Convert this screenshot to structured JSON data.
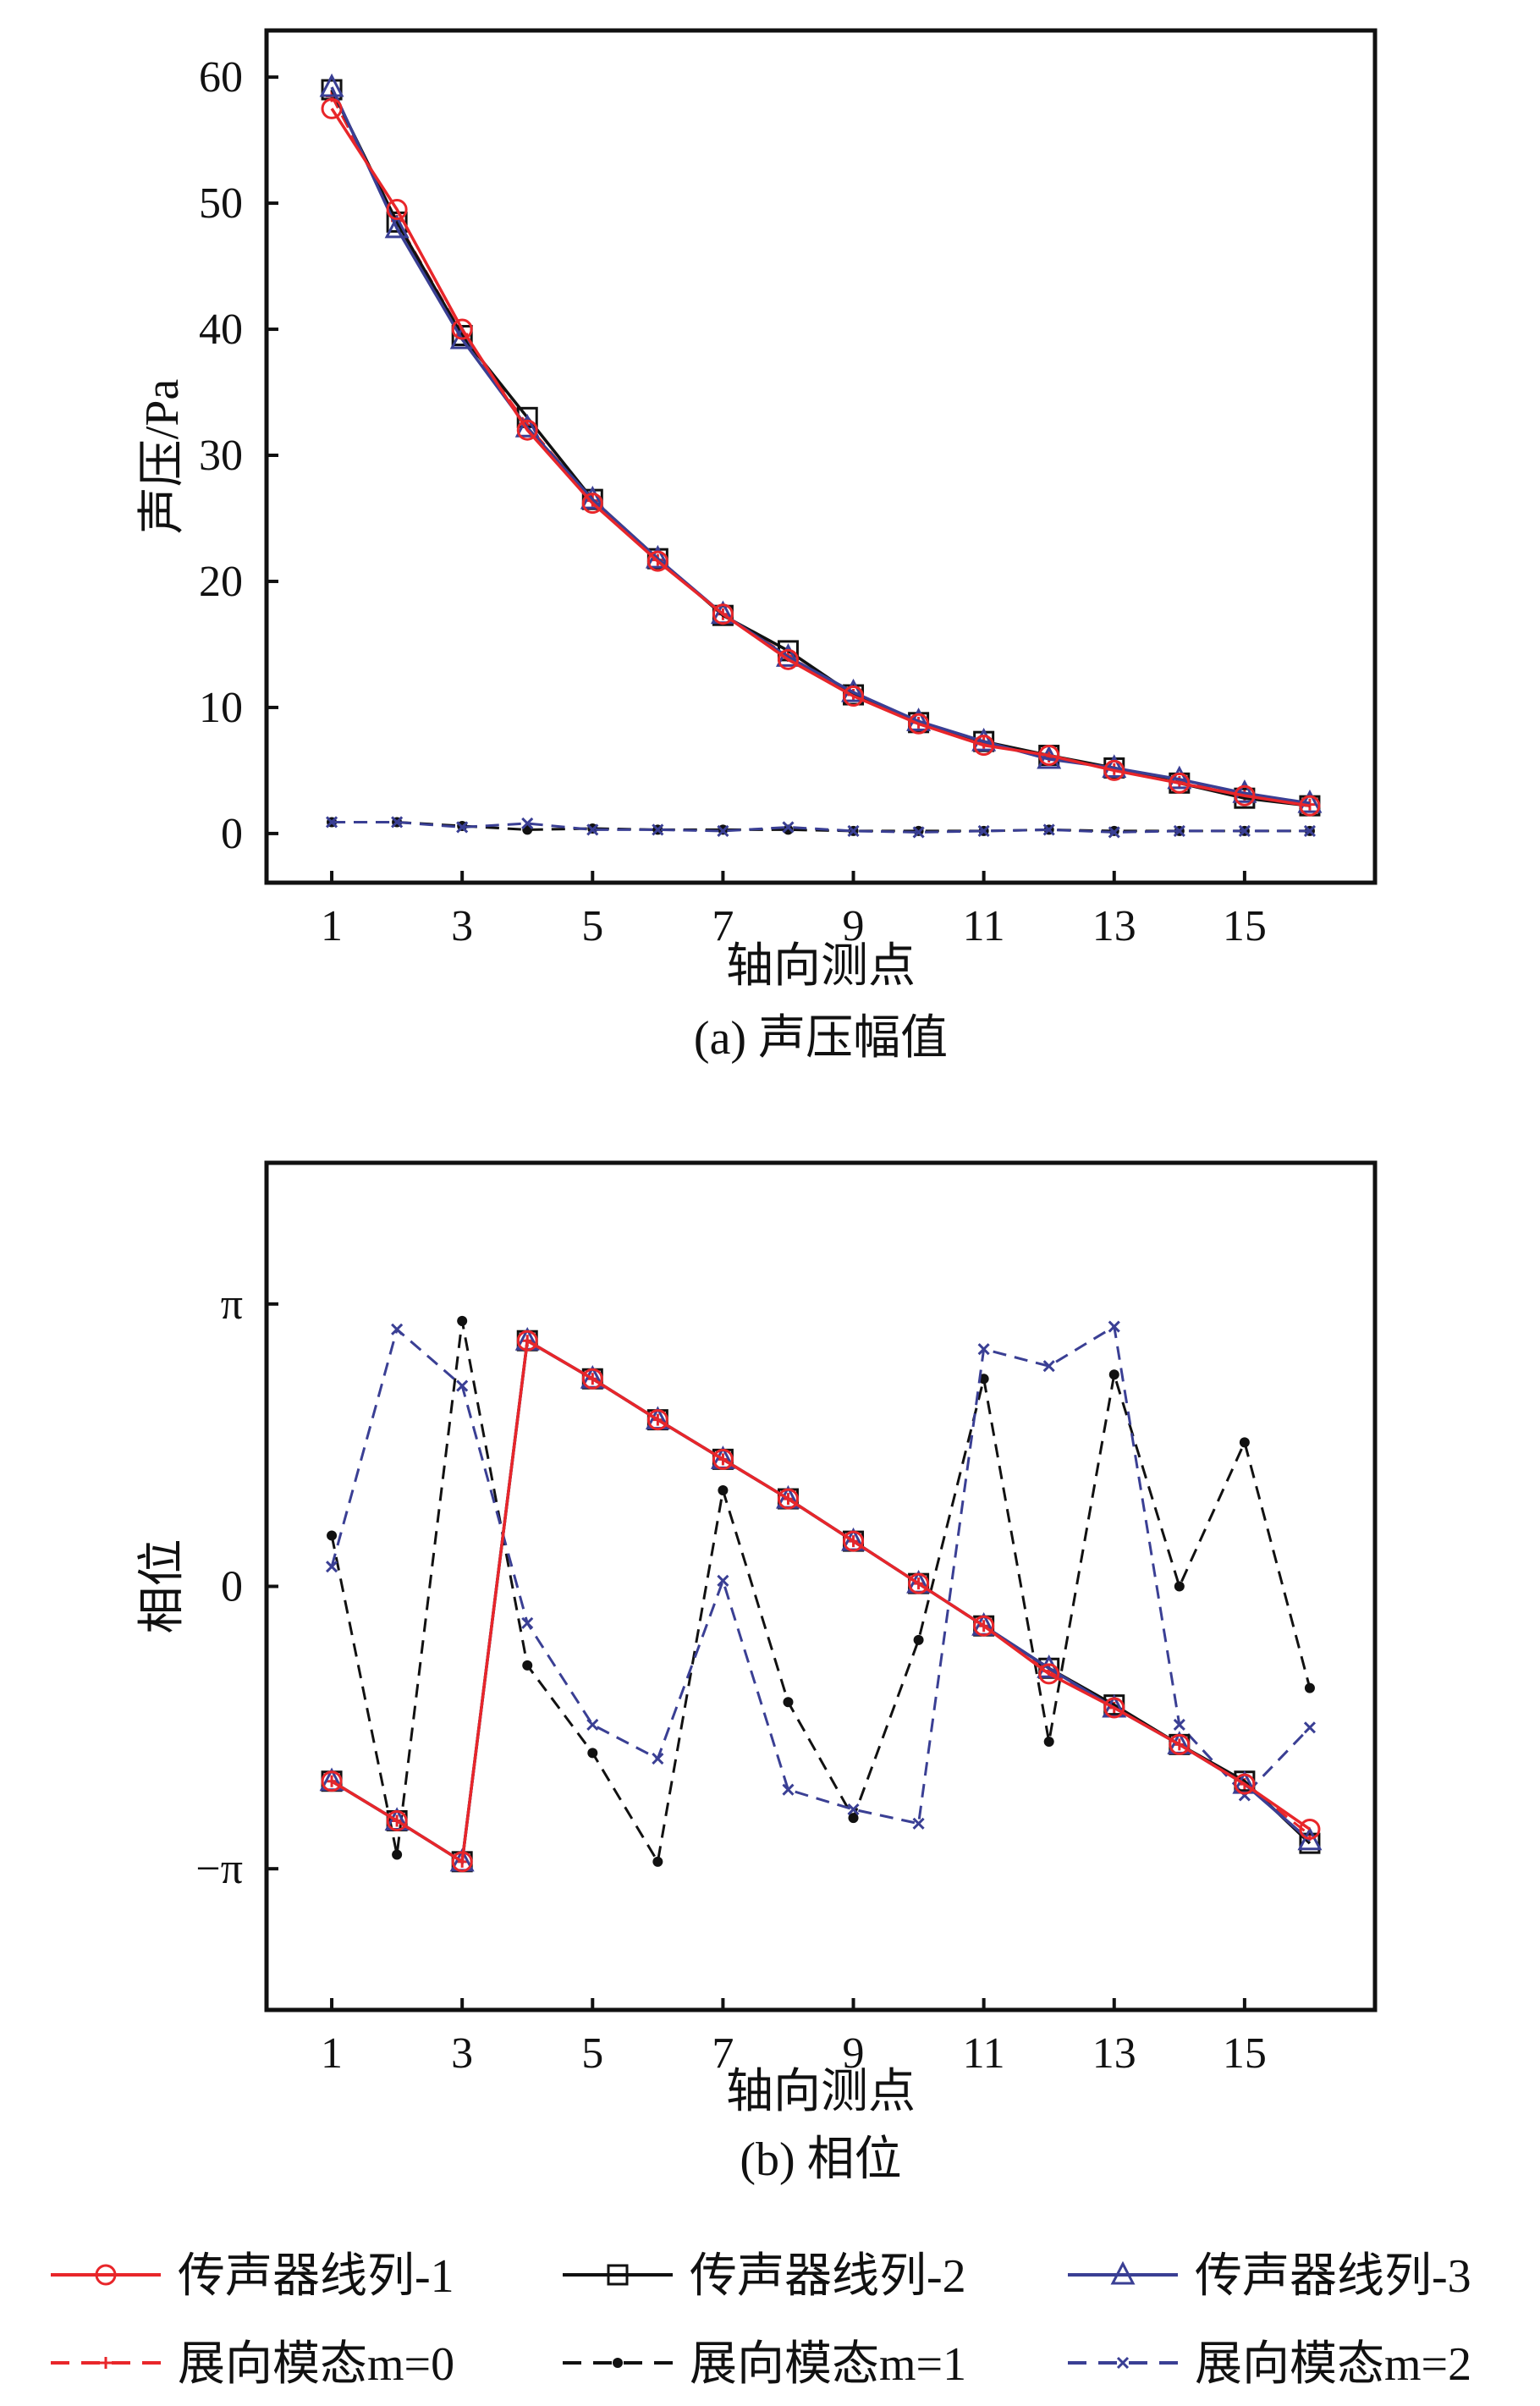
{
  "legend": [
    {
      "label": "传声器线列-1",
      "color": "#e8262a",
      "dash": false,
      "marker": "circle"
    },
    {
      "label": "传声器线列-2",
      "color": "#111111",
      "dash": false,
      "marker": "square"
    },
    {
      "label": "传声器线列-3",
      "color": "#3a3f94",
      "dash": false,
      "marker": "triangle"
    },
    {
      "label": "展向模态m=0",
      "prefix": "展向模态",
      "var": "m",
      "suffix": "=0",
      "color": "#e8262a",
      "dash": true,
      "marker": "plus"
    },
    {
      "label": "展向模态m=1",
      "prefix": "展向模态",
      "var": "m",
      "suffix": "=1",
      "color": "#111111",
      "dash": true,
      "marker": "dot"
    },
    {
      "label": "展向模态m=2",
      "prefix": "展向模态",
      "var": "m",
      "suffix": "=2",
      "color": "#3a3f94",
      "dash": true,
      "marker": "x"
    }
  ],
  "chart_data": [
    {
      "type": "line",
      "caption": "(a) 声压幅值",
      "xlabel": "轴向测点",
      "ylabel": "声压/Pa",
      "xlim": [
        0,
        17
      ],
      "ylim": [
        -3.9,
        63.7
      ],
      "xticks": [
        1,
        3,
        5,
        7,
        9,
        11,
        13,
        15
      ],
      "xtick_labels": [
        "1",
        "3",
        "5",
        "7",
        "9",
        "11",
        "13",
        "15"
      ],
      "yticks": [
        0,
        10,
        20,
        30,
        40,
        50,
        60
      ],
      "ytick_labels": [
        "0",
        "10",
        "20",
        "30",
        "40",
        "50",
        "60"
      ],
      "x": [
        1,
        2,
        3,
        4,
        5,
        6,
        7,
        8,
        9,
        10,
        11,
        12,
        13,
        14,
        15,
        16
      ],
      "series": [
        {
          "name": "传声器线列-1",
          "values": [
            57.5,
            49.5,
            40,
            32,
            26.2,
            21.6,
            17.4,
            13.8,
            10.9,
            8.7,
            7.0,
            6.2,
            5.0,
            4.0,
            3.0,
            2.2
          ]
        },
        {
          "name": "传声器线列-2",
          "values": [
            59,
            48.5,
            39.5,
            33,
            26.5,
            21.8,
            17.3,
            14.5,
            11.0,
            8.8,
            7.3,
            6.2,
            5.2,
            4.0,
            2.8,
            2.2
          ]
        },
        {
          "name": "传声器线列-3",
          "values": [
            59.2,
            48,
            39.2,
            32.2,
            26.5,
            21.8,
            17.4,
            14.0,
            11.2,
            8.9,
            7.3,
            5.9,
            5.2,
            4.3,
            3.2,
            2.4
          ]
        },
        {
          "name": "展向模态m=0",
          "values": [
            58.5,
            48.6,
            39.6,
            32.4,
            26.4,
            21.7,
            17.4,
            14.1,
            11.0,
            8.8,
            7.2,
            6.1,
            5.1,
            4.1,
            3.0,
            2.3
          ]
        },
        {
          "name": "展向模态m=1",
          "values": [
            0.9,
            0.9,
            0.6,
            0.3,
            0.4,
            0.3,
            0.3,
            0.3,
            0.2,
            0.2,
            0.2,
            0.3,
            0.2,
            0.2,
            0.2,
            0.2
          ]
        },
        {
          "name": "展向模态m=2",
          "values": [
            0.9,
            0.9,
            0.5,
            0.8,
            0.3,
            0.3,
            0.2,
            0.5,
            0.2,
            0.1,
            0.2,
            0.3,
            0.1,
            0.2,
            0.2,
            0.2
          ]
        }
      ]
    },
    {
      "type": "line",
      "caption": "(b) 相位",
      "xlabel": "轴向测点",
      "ylabel": "相位",
      "yunit": "π",
      "xlim": [
        0,
        17
      ],
      "ylim": [
        -1.5,
        1.5
      ],
      "xticks": [
        1,
        3,
        5,
        7,
        9,
        11,
        13,
        15
      ],
      "xtick_labels": [
        "1",
        "3",
        "5",
        "7",
        "9",
        "11",
        "13",
        "15"
      ],
      "yticks": [
        -1,
        0,
        1
      ],
      "ytick_labels": [
        "−π",
        "0",
        "π"
      ],
      "x": [
        1,
        2,
        3,
        4,
        5,
        6,
        7,
        8,
        9,
        10,
        11,
        12,
        13,
        14,
        15,
        16
      ],
      "series": [
        {
          "name": "传声器线列-1",
          "values": [
            -0.69,
            -0.83,
            -0.975,
            0.87,
            0.735,
            0.59,
            0.45,
            0.31,
            0.16,
            0.01,
            -0.14,
            -0.31,
            -0.43,
            -0.56,
            -0.7,
            -0.86
          ]
        },
        {
          "name": "传声器线列-2",
          "values": [
            -0.69,
            -0.83,
            -0.975,
            0.87,
            0.735,
            0.59,
            0.45,
            0.31,
            0.16,
            0.01,
            -0.14,
            -0.29,
            -0.42,
            -0.56,
            -0.69,
            -0.91
          ]
        },
        {
          "name": "传声器线列-3",
          "values": [
            -0.69,
            -0.83,
            -0.975,
            0.87,
            0.735,
            0.59,
            0.45,
            0.31,
            0.16,
            0.01,
            -0.14,
            -0.29,
            -0.43,
            -0.56,
            -0.7,
            -0.9
          ]
        },
        {
          "name": "展向模态m=0",
          "values": [
            -0.69,
            -0.83,
            -0.975,
            0.87,
            0.735,
            0.59,
            0.45,
            0.31,
            0.16,
            0.01,
            -0.14,
            -0.3,
            -0.43,
            -0.56,
            -0.7,
            -0.88
          ]
        },
        {
          "name": "展向模态m=1",
          "values": [
            0.18,
            -0.95,
            0.94,
            -0.28,
            -0.59,
            -0.975,
            0.34,
            -0.41,
            -0.82,
            -0.19,
            0.735,
            -0.55,
            0.75,
            0.0,
            0.51,
            -0.36
          ]
        },
        {
          "name": "展向模态m=2",
          "values": [
            0.07,
            0.91,
            0.71,
            -0.13,
            -0.49,
            -0.61,
            0.02,
            -0.72,
            -0.79,
            -0.84,
            0.84,
            0.78,
            0.92,
            -0.49,
            -0.74,
            -0.5
          ]
        }
      ]
    }
  ]
}
